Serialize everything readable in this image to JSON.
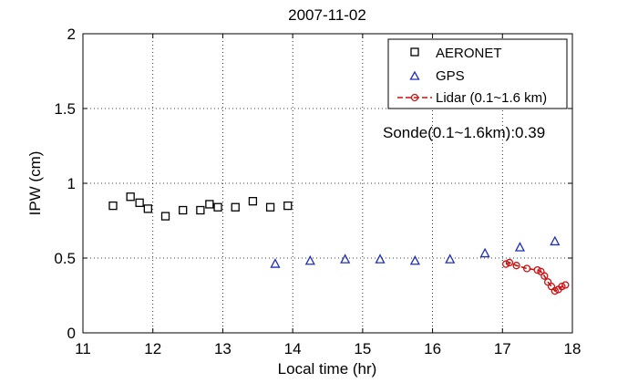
{
  "chart_data": {
    "type": "scatter",
    "title": "2007-11-02",
    "xlabel": "Local time (hr)",
    "ylabel": "IPW (cm)",
    "xlim": [
      11,
      18
    ],
    "ylim": [
      0,
      2
    ],
    "xticks": [
      "11",
      "12",
      "13",
      "14",
      "15",
      "16",
      "17",
      "18"
    ],
    "yticks": [
      "0",
      "0.5",
      "1",
      "1.5",
      "2"
    ],
    "grid": true,
    "legend_position": "top-right",
    "annotation": "Sonde(0.1~1.6km):0.39",
    "series": [
      {
        "name": "AERONET",
        "marker": "square",
        "color": "#000000",
        "x": [
          11.43,
          11.68,
          11.81,
          11.93,
          12.18,
          12.43,
          12.68,
          12.81,
          12.93,
          13.18,
          13.43,
          13.68,
          13.93
        ],
        "y": [
          0.85,
          0.91,
          0.87,
          0.83,
          0.78,
          0.82,
          0.82,
          0.86,
          0.84,
          0.84,
          0.88,
          0.84,
          0.85
        ]
      },
      {
        "name": "GPS",
        "marker": "triangle",
        "color": "#1f2fbf",
        "x": [
          13.75,
          14.25,
          14.75,
          15.25,
          15.75,
          16.25,
          16.75,
          17.25,
          17.75
        ],
        "y": [
          0.46,
          0.48,
          0.49,
          0.49,
          0.48,
          0.49,
          0.53,
          0.57,
          0.61
        ]
      },
      {
        "name": "Lidar (0.1~1.6 km)",
        "marker": "circle-dashed-line",
        "color": "#cc1111",
        "x": [
          17.05,
          17.1,
          17.2,
          17.35,
          17.5,
          17.55,
          17.6,
          17.65,
          17.7,
          17.75,
          17.8,
          17.85,
          17.9
        ],
        "y": [
          0.46,
          0.47,
          0.45,
          0.43,
          0.42,
          0.41,
          0.38,
          0.34,
          0.31,
          0.28,
          0.29,
          0.31,
          0.32
        ]
      }
    ]
  }
}
